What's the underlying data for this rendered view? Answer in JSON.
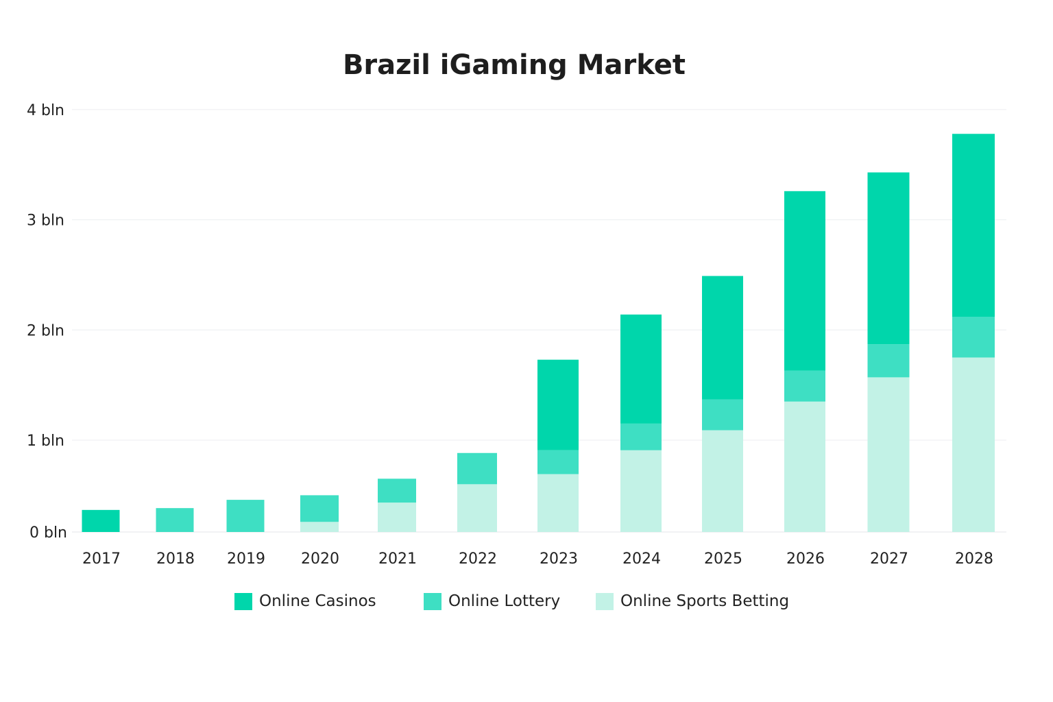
{
  "chart_data": {
    "type": "bar",
    "stacked": true,
    "title": "Brazil iGaming Market",
    "xlabel": "",
    "ylabel": "",
    "ylim": [
      0,
      4
    ],
    "yticks": [
      {
        "value": 0,
        "label": "0 bln"
      },
      {
        "value": 1,
        "label": "1 bln"
      },
      {
        "value": 2,
        "label": "2 bln"
      },
      {
        "value": 3,
        "label": "3 bln"
      },
      {
        "value": 4,
        "label": "4 bln"
      }
    ],
    "grid": true,
    "legend_placement": "bottom",
    "categories": [
      "2017",
      "2018",
      "2019",
      "2020",
      "2021",
      "2022",
      "2023",
      "2024",
      "2025",
      "2026",
      "2027",
      "2028"
    ],
    "series": [
      {
        "name": "Online Sports Betting",
        "color": "#C2F2E6",
        "values": [
          0,
          0,
          0,
          0.11,
          0.32,
          0.52,
          0.63,
          0.89,
          1.09,
          1.35,
          1.57,
          1.75
        ]
      },
      {
        "name": "Online Lottery",
        "color": "#3EDFC3",
        "values": [
          0,
          0.26,
          0.35,
          0.29,
          0.26,
          0.34,
          0.26,
          0.26,
          0.28,
          0.28,
          0.3,
          0.37
        ]
      },
      {
        "name": "Online Casinos",
        "color": "#00D6AB",
        "values": [
          0.24,
          0,
          0,
          0,
          0,
          0,
          0.84,
          0.99,
          1.12,
          1.63,
          1.56,
          1.66
        ]
      }
    ],
    "legend_order": [
      "Online Casinos",
      "Online Lottery",
      "Online Sports Betting"
    ]
  }
}
